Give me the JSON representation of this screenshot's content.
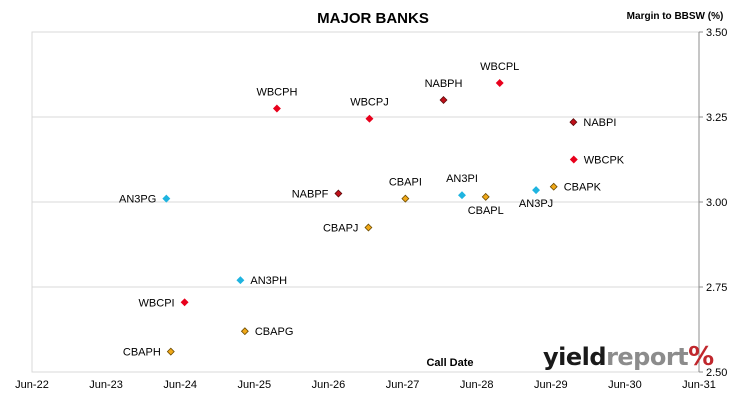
{
  "chart_data": {
    "type": "scatter",
    "title": "MAJOR BANKS",
    "ylabel": "Margin to BBSW (%)",
    "xlabel": "Call Date",
    "x_ticks": [
      "Jun-22",
      "Jun-23",
      "Jun-24",
      "Jun-25",
      "Jun-26",
      "Jun-27",
      "Jun-28",
      "Jun-29",
      "Jun-30",
      "Jun-31"
    ],
    "xlim": [
      "2022-06-01",
      "2031-06-01"
    ],
    "y_ticks": [
      "2.50",
      "2.75",
      "3.00",
      "3.25",
      "3.50"
    ],
    "ylim": [
      2.5,
      3.5
    ],
    "y_axis_side": "right",
    "grid": "horizontal",
    "colors": {
      "WBC": "#e8001c",
      "NAB": "#c0101a",
      "CBA": "#f0a818",
      "ANZ": "#1fb4e0"
    },
    "points": [
      {
        "label": "WBCPH",
        "x": "2025-09-20",
        "y": 3.275,
        "issuer": "WBC",
        "label_pos": "above"
      },
      {
        "label": "WBCPJ",
        "x": "2026-12-20",
        "y": 3.245,
        "issuer": "WBC",
        "label_pos": "above"
      },
      {
        "label": "NABPH",
        "x": "2027-12-20",
        "y": 3.3,
        "issuer": "NAB",
        "label_pos": "above"
      },
      {
        "label": "WBCPL",
        "x": "2028-09-22",
        "y": 3.35,
        "issuer": "WBC",
        "label_pos": "above"
      },
      {
        "label": "NABPI",
        "x": "2029-09-20",
        "y": 3.235,
        "issuer": "NAB",
        "label_pos": "right"
      },
      {
        "label": "WBCPK",
        "x": "2029-09-22",
        "y": 3.125,
        "issuer": "WBC",
        "label_pos": "right"
      },
      {
        "label": "CBAPK",
        "x": "2029-06-15",
        "y": 3.045,
        "issuer": "CBA",
        "label_pos": "right"
      },
      {
        "label": "AN3PJ",
        "x": "2029-03-20",
        "y": 3.035,
        "issuer": "ANZ",
        "label_pos": "below"
      },
      {
        "label": "CBAPL",
        "x": "2028-07-15",
        "y": 3.015,
        "issuer": "CBA",
        "label_pos": "below"
      },
      {
        "label": "AN3PI",
        "x": "2028-03-20",
        "y": 3.02,
        "issuer": "ANZ",
        "label_pos": "above"
      },
      {
        "label": "CBAPI",
        "x": "2027-06-15",
        "y": 3.01,
        "issuer": "CBA",
        "label_pos": "above"
      },
      {
        "label": "NABPF",
        "x": "2026-07-20",
        "y": 3.025,
        "issuer": "NAB",
        "label_pos": "left"
      },
      {
        "label": "CBAPJ",
        "x": "2026-12-15",
        "y": 2.925,
        "issuer": "CBA",
        "label_pos": "left"
      },
      {
        "label": "AN3PG",
        "x": "2024-03-24",
        "y": 3.01,
        "issuer": "ANZ",
        "label_pos": "left"
      },
      {
        "label": "AN3PH",
        "x": "2025-03-24",
        "y": 2.77,
        "issuer": "ANZ",
        "label_pos": "right"
      },
      {
        "label": "WBCPI",
        "x": "2024-06-22",
        "y": 2.705,
        "issuer": "WBC",
        "label_pos": "left"
      },
      {
        "label": "CBAPG",
        "x": "2025-04-15",
        "y": 2.62,
        "issuer": "CBA",
        "label_pos": "right"
      },
      {
        "label": "CBAPH",
        "x": "2024-04-15",
        "y": 2.56,
        "issuer": "CBA",
        "label_pos": "left"
      }
    ]
  },
  "branding": {
    "logo_text": "yieldreport",
    "logo_yield": "yield",
    "logo_report": "report",
    "logo_symbol": "%"
  }
}
